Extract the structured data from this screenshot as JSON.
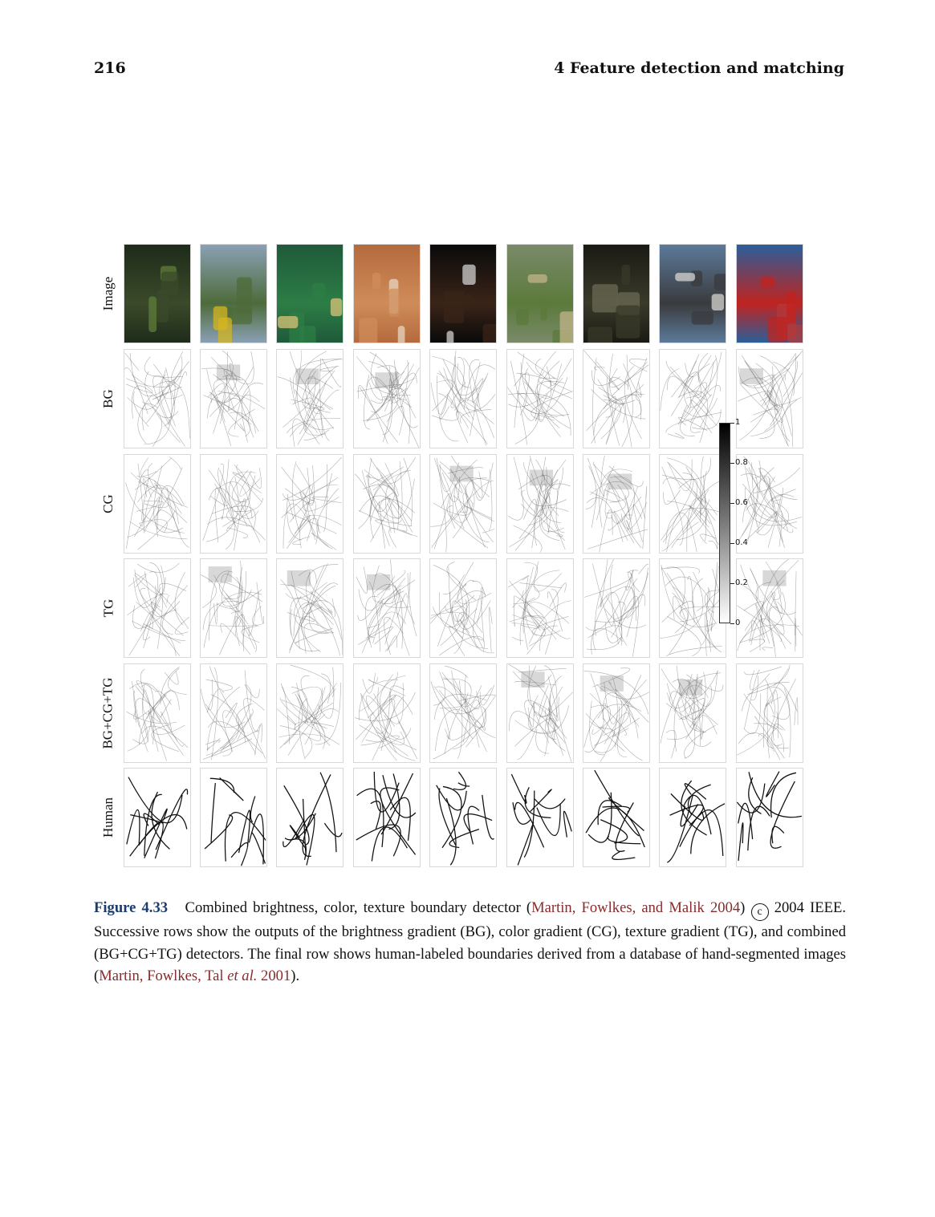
{
  "header": {
    "page_number": "216",
    "chapter_title": "4  Feature detection and matching"
  },
  "figure": {
    "row_labels": [
      "Image",
      "BG",
      "CG",
      "TG",
      "BG+CG+TG",
      "Human"
    ],
    "images": [
      {
        "name": "tiki-statues",
        "colors": [
          "#1e2b1a",
          "#3b4a2a",
          "#5f7d3a"
        ]
      },
      {
        "name": "pole-fisher",
        "colors": [
          "#8aa0b4",
          "#4d6b3a",
          "#d4b520"
        ]
      },
      {
        "name": "mushroom",
        "colors": [
          "#1f5a3a",
          "#2d7d46",
          "#d9c47a"
        ]
      },
      {
        "name": "water-carrier",
        "colors": [
          "#b46a3d",
          "#cf8c5a",
          "#e6d6c0"
        ]
      },
      {
        "name": "portrait",
        "colors": [
          "#0a0a0a",
          "#3a2418",
          "#d0d0d0"
        ]
      },
      {
        "name": "soldier",
        "colors": [
          "#7a8a6a",
          "#5b7a3b",
          "#c2b48a"
        ]
      },
      {
        "name": "stone-idol",
        "colors": [
          "#1a1a14",
          "#3a3a2a",
          "#6b6a54"
        ]
      },
      {
        "name": "rowboat",
        "colors": [
          "#5c7a9a",
          "#3a3b3d",
          "#d6d6d0"
        ]
      },
      {
        "name": "tower-flowers",
        "colors": [
          "#2a5f9a",
          "#c0231f",
          "#b43a3a"
        ]
      }
    ],
    "colorbar": {
      "ticks": [
        "1",
        "0.8",
        "0.6",
        "0.4",
        "0.2",
        "0"
      ],
      "colors": [
        "#000000",
        "#ffffff"
      ]
    }
  },
  "caption": {
    "label": "Figure 4.33",
    "text1": "Combined brightness, color, texture boundary detector (",
    "cite1": "Martin, Fowlkes, and Malik 2004",
    "text2": ")",
    "copyright_symbol": "c",
    "text3": " 2004 IEEE. Successive rows show the outputs of the brightness gradient (BG), color gradient (CG), texture gradient (TG), and combined (BG+CG+TG) detectors.  The final row shows human-labeled boundaries derived from a database of hand-segmented images (",
    "cite2a": "Martin, Fowlkes, Tal ",
    "cite2_italic": "et al.",
    "cite2b": " 2001",
    "text4": ")."
  }
}
